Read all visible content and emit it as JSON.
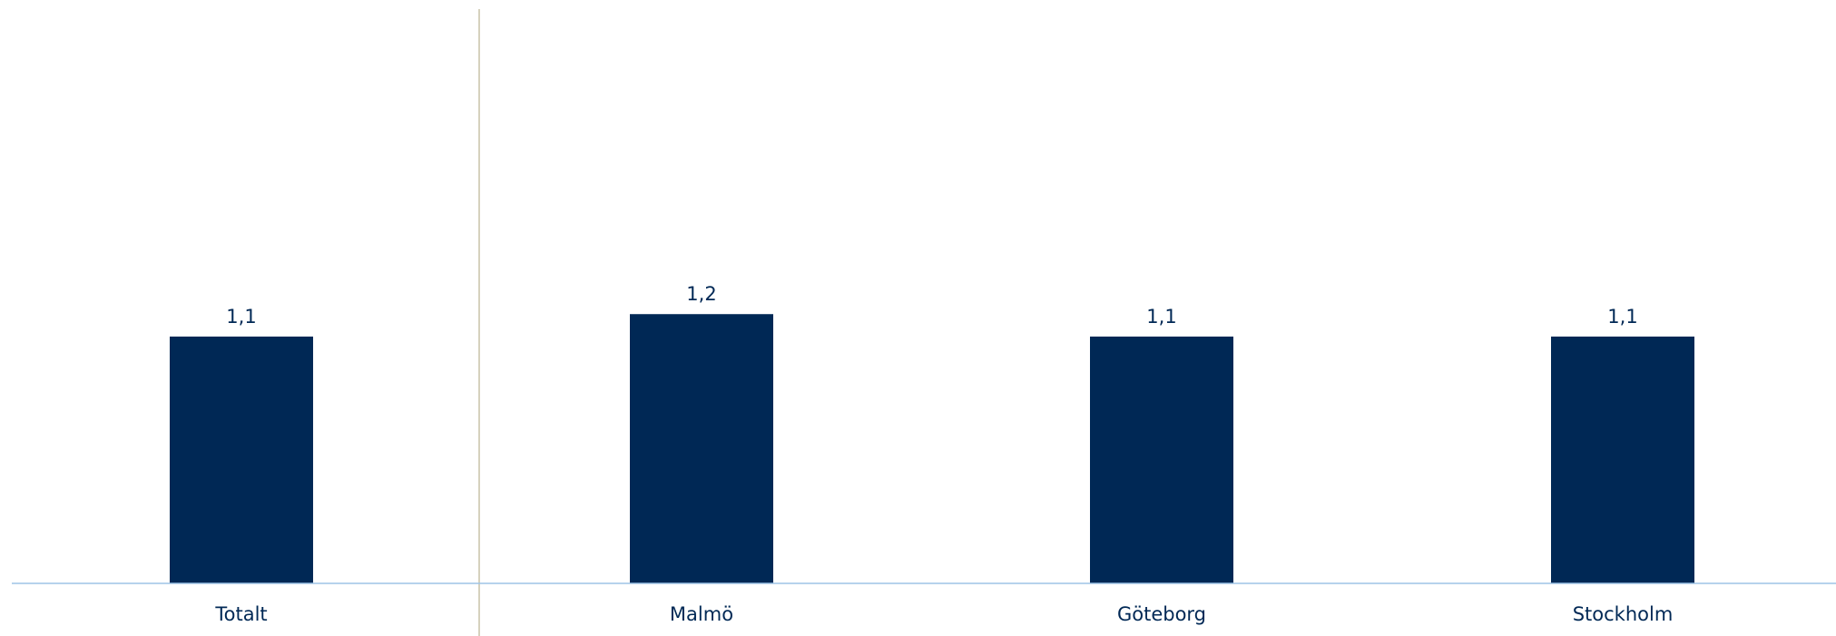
{
  "chart_data": {
    "type": "bar",
    "categories": [
      "Totalt",
      "Malmö",
      "Göteborg",
      "Stockholm"
    ],
    "values": [
      1.1,
      1.2,
      1.1,
      1.1
    ],
    "value_labels": [
      "1,1",
      "1,2",
      "1,1",
      "1,1"
    ],
    "title": "",
    "xlabel": "",
    "ylabel": "",
    "ylim": [
      0,
      2.6
    ],
    "grid": false,
    "legend": "none",
    "separator_after_category": "Totalt"
  },
  "colors": {
    "bar": "#002855",
    "text": "#002855",
    "axis": "#9DC3E6",
    "separator": "#C9C3A8"
  }
}
